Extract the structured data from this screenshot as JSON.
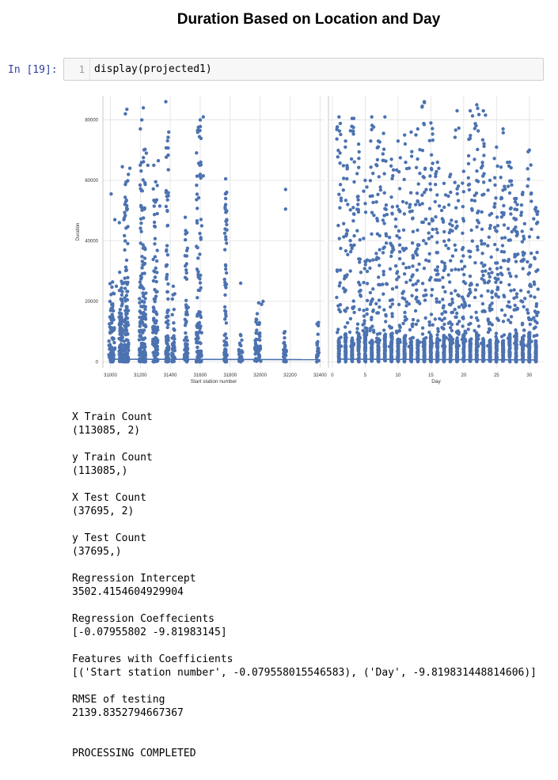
{
  "title": "Duration Based on Location and Day",
  "cell": {
    "prompt": "In [19]:",
    "line_number": "1",
    "code": "display(projected1)"
  },
  "chart_data": {
    "type": "scatter",
    "ylabel": "Duration",
    "ylim": [
      -2000,
      88000
    ],
    "yticks": [
      0,
      20000,
      40000,
      60000,
      80000
    ],
    "grid": true,
    "color": "#4c72b0",
    "facets": [
      {
        "xlabel": "Start station number",
        "xlim": [
          30950,
          32430
        ],
        "xticks": [
          31000,
          31200,
          31400,
          31600,
          31800,
          32000,
          32200,
          32400
        ],
        "regression_line": [
          [
            31000,
            850
          ],
          [
            32400,
            720
          ]
        ],
        "clusters": [
          {
            "x": 31010,
            "w": 40,
            "dens": 14000,
            "sp": 28000,
            "pts": [
              [
                31005,
                55500
              ],
              [
                31030,
                47000
              ],
              [
                31040,
                25000
              ]
            ]
          },
          {
            "x": 31070,
            "w": 25,
            "dens": 15000,
            "sp": 30000,
            "pts": [
              [
                31080,
                64500
              ],
              [
                31060,
                46000
              ],
              [
                31090,
                47000
              ]
            ]
          },
          {
            "x": 31105,
            "w": 35,
            "dens": 18000,
            "sp": 60000,
            "pts": [
              [
                31100,
                82000
              ],
              [
                31110,
                83500
              ],
              [
                31120,
                62000
              ],
              [
                31130,
                64000
              ]
            ]
          },
          {
            "x": 31215,
            "w": 45,
            "dens": 24000,
            "sp": 73000,
            "pts": [
              [
                31200,
                77000
              ],
              [
                31210,
                80000
              ],
              [
                31220,
                84000
              ],
              [
                31240,
                69000
              ],
              [
                31250,
                65000
              ]
            ]
          },
          {
            "x": 31300,
            "w": 35,
            "dens": 15000,
            "sp": 62000,
            "pts": [
              [
                31290,
                65000
              ],
              [
                31320,
                66500
              ],
              [
                31330,
                51500
              ]
            ]
          },
          {
            "x": 31380,
            "w": 20,
            "dens": 7000,
            "sp": 76000,
            "pts": [
              [
                31370,
                86000
              ],
              [
                31390,
                76000
              ],
              [
                31380,
                50000
              ]
            ]
          },
          {
            "x": 31420,
            "w": 20,
            "dens": 6000,
            "sp": 25000,
            "pts": [
              [
                31420,
                25000
              ],
              [
                31430,
                22500
              ]
            ]
          },
          {
            "x": 31505,
            "w": 25,
            "dens": 7000,
            "sp": 48000,
            "pts": [
              [
                31500,
                47800
              ],
              [
                31510,
                35000
              ],
              [
                31520,
                18000
              ]
            ]
          },
          {
            "x": 31590,
            "w": 40,
            "dens": 12000,
            "sp": 81000,
            "pts": [
              [
                31600,
                80000
              ],
              [
                31620,
                81000
              ],
              [
                31600,
                62000
              ],
              [
                31610,
                45000
              ],
              [
                31620,
                61500
              ]
            ]
          },
          {
            "x": 31770,
            "w": 20,
            "dens": 7000,
            "sp": 60000,
            "pts": [
              [
                31770,
                60500
              ],
              [
                31770,
                54000
              ],
              [
                31770,
                52000
              ]
            ]
          },
          {
            "x": 31870,
            "w": 25,
            "dens": 5000,
            "sp": 9000,
            "pts": [
              [
                31870,
                26000
              ]
            ]
          },
          {
            "x": 31985,
            "w": 40,
            "dens": 9000,
            "sp": 19000,
            "pts": [
              [
                31990,
                19500
              ],
              [
                32010,
                19000
              ],
              [
                32020,
                20000
              ]
            ]
          },
          {
            "x": 32165,
            "w": 20,
            "dens": 5000,
            "sp": 10000,
            "pts": [
              [
                32170,
                57000
              ],
              [
                32170,
                50500
              ],
              [
                32160,
                9500
              ]
            ]
          },
          {
            "x": 32385,
            "w": 15,
            "dens": 4500,
            "sp": 13000,
            "pts": [
              [
                32390,
                13000
              ]
            ]
          }
        ]
      },
      {
        "xlabel": "Day",
        "xlim": [
          -0.6,
          32.2
        ],
        "xticks": [
          0,
          5,
          10,
          15,
          20,
          25,
          30
        ],
        "regression_line": [
          [
            1,
            900
          ],
          [
            31,
            620
          ]
        ],
        "day_max": [
          81000,
          73000,
          80500,
          72000,
          60000,
          81000,
          73000,
          81000,
          67000,
          73000,
          75000,
          76000,
          77000,
          86000,
          79000,
          66000,
          59000,
          62000,
          83000,
          63000,
          83000,
          85000,
          83000,
          60000,
          71000,
          77000,
          66000,
          54000,
          56000,
          70000,
          51000
        ],
        "jitter_width": 0.35
      }
    ]
  },
  "output_lines": [
    "X Train Count",
    "(113085, 2)",
    "",
    "y Train Count",
    "(113085,)",
    "",
    "X Test Count",
    "(37695, 2)",
    "",
    "y Test Count",
    "(37695,)",
    "",
    "Regression Intercept",
    "3502.4154604929904",
    "",
    "Regression Coeffecients",
    "[-0.07955802 -9.81983145]",
    "",
    "Features with Coefficients",
    "[('Start station number', -0.079558015546583), ('Day', -9.819831448814606)]",
    "",
    "RMSE of testing",
    "2139.8352794667367",
    "",
    "",
    "PROCESSING COMPLETED"
  ]
}
